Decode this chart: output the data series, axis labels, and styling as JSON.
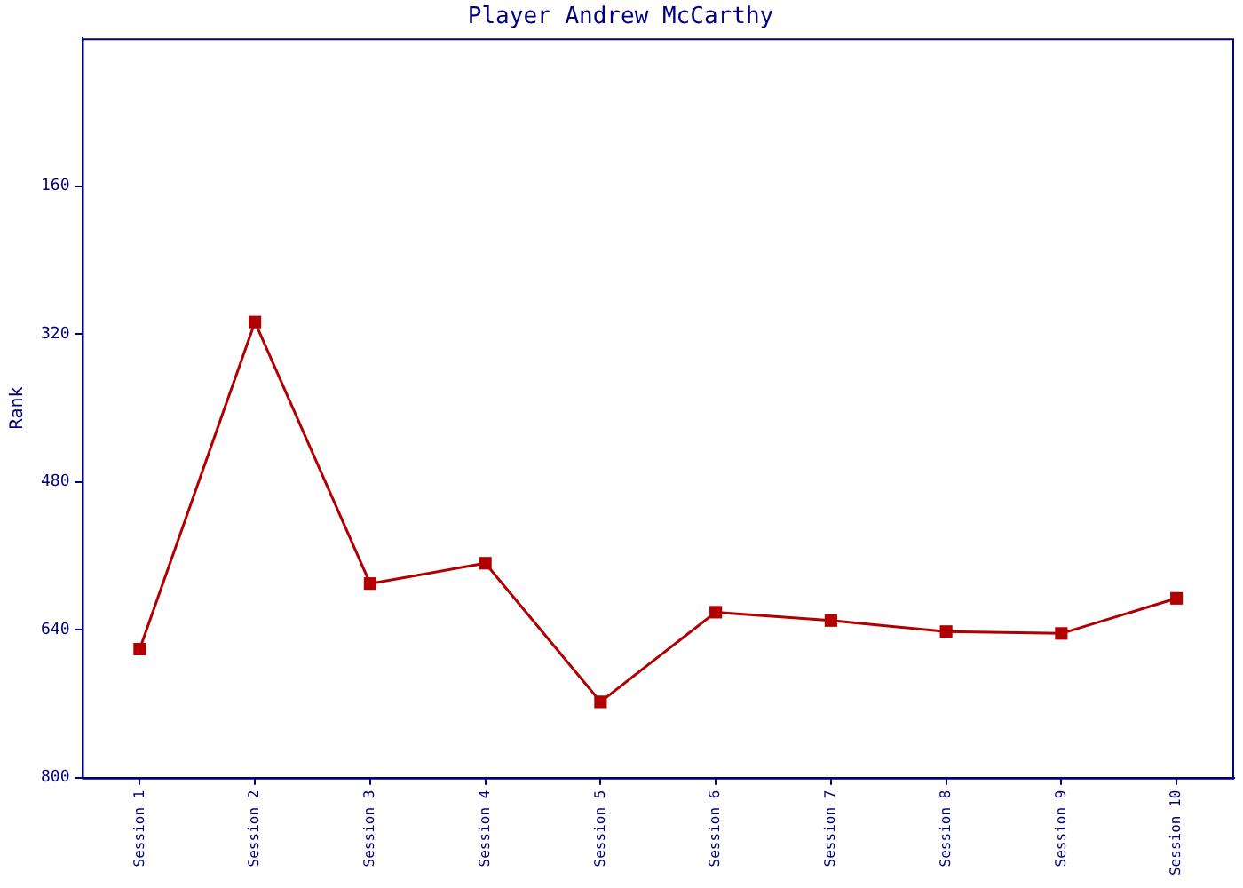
{
  "chart_data": {
    "type": "line",
    "title": "Player Andrew McCarthy",
    "ylabel": "Rank",
    "categories": [
      "Session 1",
      "Session 2",
      "Session 3",
      "Session 4",
      "Session 5",
      "Session 6",
      "Session 7",
      "Session 8",
      "Session 9",
      "Session 10"
    ],
    "series": [
      {
        "color": "#b00000",
        "values": [
          661,
          307,
          590,
          568,
          718,
          621,
          630,
          642,
          644,
          606
        ]
      }
    ],
    "ylim": [
      800,
      0
    ],
    "yticks": [
      160,
      320,
      480,
      640,
      800
    ],
    "grid": false,
    "legend": false,
    "marker": "square",
    "line_style": "solid"
  }
}
